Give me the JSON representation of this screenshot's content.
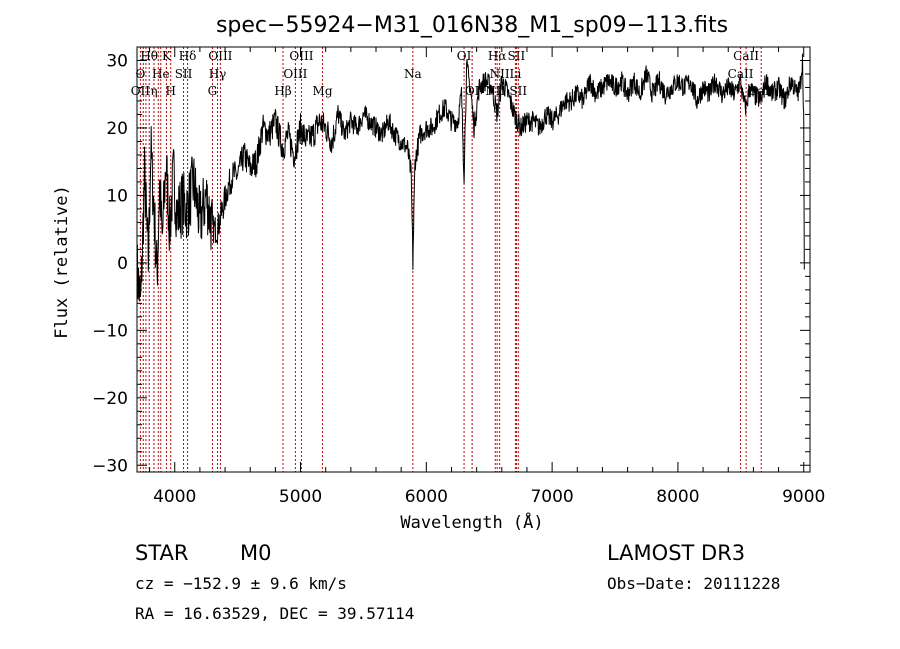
{
  "chart_data": {
    "type": "line",
    "title": "spec−55924−M31_016N38_M1_sp09−113.fits",
    "xlabel": "Wavelength (Å)",
    "ylabel": "Flux (relative)",
    "xlim": [
      3700,
      9050
    ],
    "ylim": [
      -31,
      32
    ],
    "xticks": [
      4000,
      5000,
      6000,
      7000,
      8000,
      9000
    ],
    "yticks": [
      -30,
      -20,
      -10,
      0,
      10,
      20,
      30
    ],
    "ytick_labels": [
      "−30",
      "−20",
      "−10",
      "0",
      "10",
      "20",
      "30"
    ],
    "series": [
      {
        "name": "spectrum",
        "x": [
          3700,
          3730,
          3760,
          3790,
          3810,
          3840,
          3860,
          3880,
          3900,
          3930,
          3960,
          3990,
          4020,
          4060,
          4100,
          4150,
          4200,
          4250,
          4300,
          4340,
          4380,
          4420,
          4460,
          4500,
          4550,
          4600,
          4650,
          4700,
          4750,
          4800,
          4860,
          4900,
          4950,
          5000,
          5050,
          5100,
          5150,
          5200,
          5250,
          5300,
          5350,
          5400,
          5450,
          5500,
          5550,
          5600,
          5650,
          5700,
          5750,
          5800,
          5850,
          5880,
          5893,
          5910,
          5950,
          6000,
          6050,
          6100,
          6150,
          6200,
          6250,
          6280,
          6300,
          6320,
          6350,
          6380,
          6420,
          6470,
          6520,
          6563,
          6600,
          6650,
          6700,
          6750,
          6800,
          6850,
          6900,
          6950,
          7000,
          7050,
          7100,
          7150,
          7200,
          7250,
          7300,
          7350,
          7400,
          7450,
          7500,
          7550,
          7600,
          7650,
          7700,
          7750,
          7800,
          7850,
          7900,
          7950,
          8000,
          8050,
          8100,
          8150,
          8200,
          8250,
          8300,
          8350,
          8400,
          8450,
          8498,
          8520,
          8542,
          8570,
          8600,
          8662,
          8700,
          8750,
          8800,
          8850,
          8900,
          8950,
          8970,
          8990,
          9000,
          9005
        ],
        "values": [
          -1,
          -6,
          13,
          0,
          17,
          6,
          -2,
          12,
          3,
          15,
          5,
          13,
          7,
          9,
          8,
          12,
          6,
          10,
          5,
          5,
          8,
          11,
          13,
          13,
          16,
          14,
          15,
          20,
          19,
          21,
          17,
          19,
          16,
          20,
          18,
          19,
          21,
          20,
          18,
          22,
          19,
          21,
          20,
          22,
          21,
          20,
          19,
          21,
          19,
          18,
          17,
          13,
          0,
          15,
          19,
          20,
          20,
          22,
          23,
          21,
          21,
          25,
          13,
          29,
          26,
          20,
          26,
          27,
          26,
          22,
          27,
          25,
          22,
          20,
          21,
          21,
          20,
          22,
          21,
          22,
          24,
          24,
          25,
          24,
          27,
          25,
          26,
          27,
          26,
          27,
          25,
          27,
          25,
          28,
          25,
          27,
          25,
          26,
          27,
          26,
          27,
          24,
          26,
          25,
          27,
          25,
          26,
          25,
          27,
          24,
          23,
          26,
          25,
          24,
          27,
          25,
          26,
          24,
          27,
          25,
          26,
          30,
          22,
          -1
        ]
      }
    ],
    "line_labels": [
      {
        "text": "Hθ",
        "x": 3797,
        "row": 1
      },
      {
        "text": "K",
        "x": 3934,
        "row": 1
      },
      {
        "text": "Hδ",
        "x": 4102,
        "row": 1
      },
      {
        "text": "OIII",
        "x": 4363,
        "row": 1
      },
      {
        "text": "OIII",
        "x": 5007,
        "row": 1
      },
      {
        "text": "OI",
        "x": 6300,
        "row": 1
      },
      {
        "text": "Hα",
        "x": 6563,
        "row": 1
      },
      {
        "text": "SII",
        "x": 6716,
        "row": 1
      },
      {
        "text": "CaII",
        "x": 8542,
        "row": 1
      },
      {
        "text": "O",
        "x": 3727,
        "row": 2
      },
      {
        "text": "He",
        "x": 3889,
        "row": 2
      },
      {
        "text": "SII",
        "x": 4070,
        "row": 2
      },
      {
        "text": "Hγ",
        "x": 4340,
        "row": 2
      },
      {
        "text": "OIII",
        "x": 4959,
        "row": 2
      },
      {
        "text": "Na",
        "x": 5893,
        "row": 2
      },
      {
        "text": "NII",
        "x": 6583,
        "row": 2
      },
      {
        "text": "Li",
        "x": 6708,
        "row": 2
      },
      {
        "text": "CaII",
        "x": 8498,
        "row": 2
      },
      {
        "text": "OII",
        "x": 3727,
        "row": 3
      },
      {
        "text": "η",
        "x": 3835,
        "row": 3
      },
      {
        "text": "H",
        "x": 3968,
        "row": 3
      },
      {
        "text": "G",
        "x": 4300,
        "row": 3
      },
      {
        "text": "Hβ",
        "x": 4861,
        "row": 3
      },
      {
        "text": "Mg",
        "x": 5175,
        "row": 3
      },
      {
        "text": "OI",
        "x": 6364,
        "row": 3
      },
      {
        "text": "NII",
        "x": 6548,
        "row": 3
      },
      {
        "text": "SII",
        "x": 6731,
        "row": 3
      },
      {
        "text": "CaII",
        "x": 8662,
        "row": 3
      }
    ],
    "marker_lines": [
      3727,
      3750,
      3771,
      3797,
      3835,
      3869,
      3889,
      3934,
      3968,
      4070,
      4102,
      4300,
      4340,
      4363,
      4861,
      4959,
      5007,
      5175,
      5893,
      6300,
      6364,
      6548,
      6563,
      6583,
      6708,
      6716,
      6731,
      8498,
      8542,
      8662
    ],
    "marker_color": "#c00000"
  },
  "info": {
    "class_label": "STAR",
    "subclass_label": "M0",
    "survey": "LAMOST DR3",
    "cz": "cz = −152.9 ± 9.6 km/s",
    "obs_date": "Obs−Date: 20111228",
    "radec": "RA =  16.63529, DEC =  39.57114"
  }
}
